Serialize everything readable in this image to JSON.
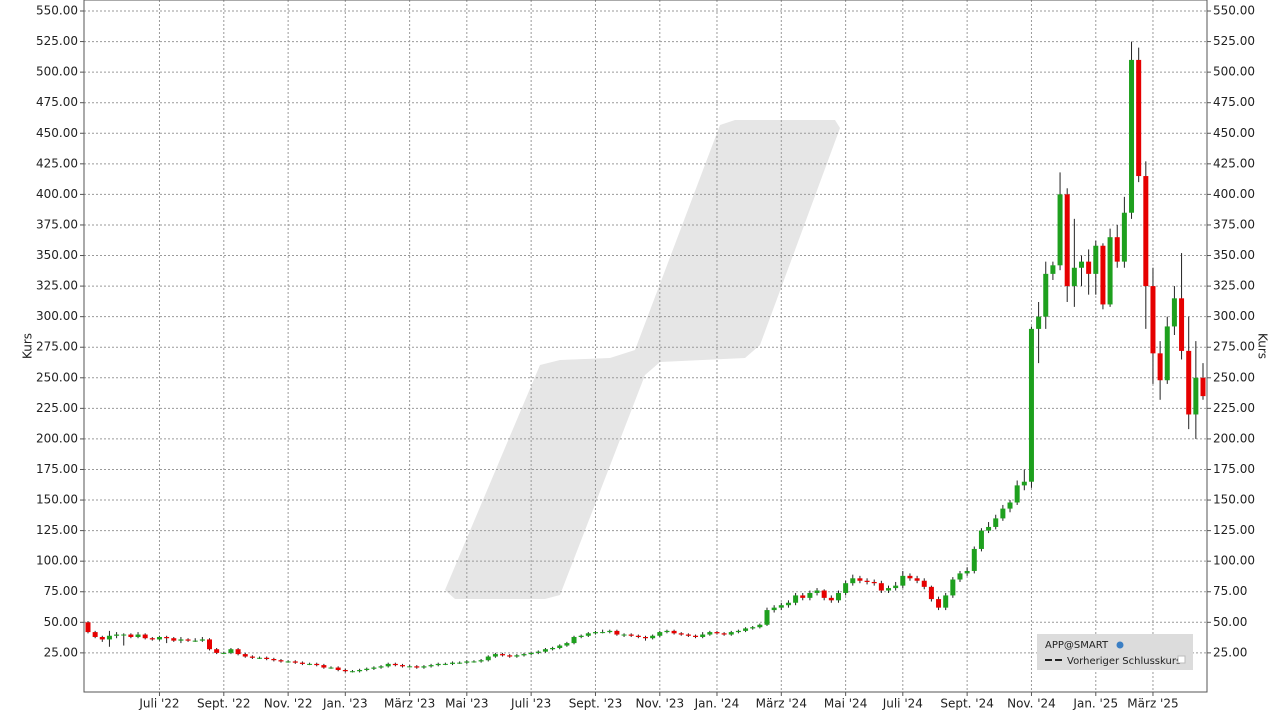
{
  "chart_data": {
    "type": "candlestick",
    "y_label": "Kurs",
    "ylim": [
      -7,
      559
    ],
    "yticks": [
      {
        "value": 25,
        "label": "25.00"
      },
      {
        "value": 50,
        "label": "50.00"
      },
      {
        "value": 75,
        "label": "75.00"
      },
      {
        "value": 100,
        "label": "100.00"
      },
      {
        "value": 125,
        "label": "125.00"
      },
      {
        "value": 150,
        "label": "150.00"
      },
      {
        "value": 175,
        "label": "175.00"
      },
      {
        "value": 200,
        "label": "200.00"
      },
      {
        "value": 225,
        "label": "225.00"
      },
      {
        "value": 250,
        "label": "250.00"
      },
      {
        "value": 275,
        "label": "275.00"
      },
      {
        "value": 300,
        "label": "300.00"
      },
      {
        "value": 325,
        "label": "325.00"
      },
      {
        "value": 350,
        "label": "350.00"
      },
      {
        "value": 375,
        "label": "375.00"
      },
      {
        "value": 400,
        "label": "400.00"
      },
      {
        "value": 425,
        "label": "425.00"
      },
      {
        "value": 450,
        "label": "450.00"
      },
      {
        "value": 475,
        "label": "475.00"
      },
      {
        "value": 500,
        "label": "500.00"
      },
      {
        "value": 525,
        "label": "525.00"
      },
      {
        "value": 550,
        "label": "550.00"
      }
    ],
    "grid": true,
    "up_color": "#1ea01e",
    "down_color": "#e60000",
    "legend": {
      "series_name": "APP@SMART",
      "previous_close": "Vorheriger Schlusskurs"
    },
    "categories": [
      null,
      null,
      null,
      null,
      null,
      null,
      null,
      null,
      null,
      null,
      "Juli '22",
      null,
      null,
      null,
      null,
      null,
      null,
      null,
      null,
      "Sept. '22",
      null,
      null,
      null,
      null,
      null,
      null,
      null,
      null,
      "Nov. '22",
      null,
      null,
      null,
      null,
      null,
      null,
      null,
      "Jan. '23",
      null,
      null,
      null,
      null,
      null,
      null,
      null,
      null,
      "März '23",
      null,
      null,
      null,
      null,
      null,
      null,
      null,
      "Mai '23",
      null,
      null,
      null,
      null,
      null,
      null,
      null,
      null,
      "Juli '23",
      null,
      null,
      null,
      null,
      null,
      null,
      null,
      null,
      "Sept. '23",
      null,
      null,
      null,
      null,
      null,
      null,
      null,
      null,
      "Nov. '23",
      null,
      null,
      null,
      null,
      null,
      null,
      null,
      "Jan. '24",
      null,
      null,
      null,
      null,
      null,
      null,
      null,
      null,
      "März '24",
      null,
      null,
      null,
      null,
      null,
      null,
      null,
      null,
      "Mai '24",
      null,
      null,
      null,
      null,
      null,
      null,
      null,
      "Juli '24",
      null,
      null,
      null,
      null,
      null,
      null,
      null,
      null,
      "Sept. '24",
      null,
      null,
      null,
      null,
      null,
      null,
      null,
      null,
      "Nov. '24",
      null,
      null,
      null,
      null,
      null,
      null,
      null,
      null,
      "Jan. '25",
      null,
      null,
      null,
      null,
      null,
      null,
      null,
      "März '25",
      null,
      null,
      null,
      null,
      null,
      null,
      null
    ],
    "open": [
      50,
      42,
      38,
      36,
      39,
      40,
      40,
      38,
      40,
      37,
      36,
      38,
      37,
      35,
      36,
      35,
      35,
      36,
      28,
      25,
      25,
      28,
      24,
      22,
      21,
      21,
      20,
      19,
      18,
      18,
      17,
      16,
      16,
      15,
      13,
      13,
      11,
      10,
      10,
      11,
      12,
      13,
      14,
      16,
      15,
      14,
      14,
      13,
      14,
      15,
      16,
      16,
      17,
      17,
      18,
      18,
      19,
      22,
      24,
      23,
      22,
      23,
      24,
      25,
      26,
      28,
      29,
      31,
      33,
      38,
      39,
      41,
      42,
      42,
      43,
      40,
      40,
      39,
      38,
      37,
      39,
      42,
      43,
      41,
      40,
      39,
      38,
      40,
      42,
      41,
      40,
      42,
      43,
      45,
      46,
      48,
      60,
      62,
      64,
      66,
      72,
      70,
      74,
      76,
      70,
      68,
      74,
      82,
      86,
      84,
      83,
      82,
      76,
      78,
      80,
      88,
      86,
      84,
      79,
      69,
      62,
      72,
      85,
      90,
      92,
      110,
      125,
      128,
      135,
      143,
      148,
      162,
      165,
      290,
      300,
      335,
      342,
      400,
      325,
      340,
      345,
      335,
      358,
      310,
      365,
      345,
      385,
      510,
      415,
      325,
      270,
      248,
      292,
      315,
      272,
      220,
      250
    ],
    "high": [
      51,
      43,
      39,
      43,
      42,
      41,
      41,
      42,
      41,
      38,
      39,
      39,
      38,
      38,
      37,
      37,
      38,
      37,
      29,
      26,
      29,
      29,
      25,
      23,
      22,
      22,
      21,
      20,
      19,
      19,
      18,
      17,
      17,
      16,
      14,
      14,
      12,
      11,
      12,
      13,
      14,
      15,
      17,
      17,
      16,
      15,
      15,
      15,
      16,
      17,
      17,
      18,
      18,
      19,
      19,
      20,
      23,
      25,
      25,
      24,
      24,
      25,
      26,
      27,
      29,
      30,
      32,
      34,
      39,
      40,
      42,
      43,
      44,
      44,
      44,
      41,
      41,
      40,
      39,
      40,
      43,
      44,
      44,
      42,
      41,
      40,
      42,
      43,
      43,
      42,
      43,
      44,
      46,
      47,
      49,
      62,
      64,
      66,
      68,
      74,
      74,
      76,
      78,
      77,
      72,
      76,
      84,
      89,
      88,
      86,
      85,
      84,
      80,
      83,
      92,
      90,
      88,
      86,
      80,
      71,
      74,
      87,
      92,
      95,
      112,
      127,
      132,
      138,
      146,
      150,
      166,
      175,
      292,
      312,
      345,
      345,
      418,
      405,
      380,
      350,
      355,
      362,
      360,
      372,
      375,
      398,
      525,
      520,
      427,
      340,
      280,
      300,
      325,
      352,
      300,
      280,
      262
    ],
    "low": [
      41,
      37,
      34,
      30,
      37,
      31,
      37,
      37,
      36,
      35,
      35,
      33,
      34,
      33,
      34,
      34,
      34,
      27,
      24,
      24,
      24,
      23,
      21,
      20,
      20,
      19,
      18,
      17,
      17,
      16,
      15,
      15,
      14,
      12,
      12,
      10,
      9,
      9,
      9,
      10,
      11,
      12,
      13,
      14,
      13,
      13,
      12,
      12,
      13,
      14,
      15,
      15,
      16,
      16,
      17,
      17,
      18,
      21,
      22,
      21,
      21,
      22,
      23,
      24,
      25,
      27,
      28,
      30,
      32,
      37,
      38,
      40,
      41,
      41,
      39,
      38,
      38,
      37,
      35,
      36,
      38,
      41,
      40,
      39,
      38,
      37,
      37,
      39,
      40,
      39,
      39,
      41,
      42,
      44,
      45,
      47,
      58,
      60,
      62,
      64,
      68,
      68,
      72,
      68,
      66,
      66,
      72,
      80,
      82,
      81,
      80,
      74,
      74,
      76,
      78,
      84,
      82,
      77,
      67,
      60,
      60,
      70,
      83,
      88,
      90,
      108,
      123,
      126,
      133,
      140,
      146,
      158,
      160,
      262,
      290,
      330,
      338,
      312,
      308,
      325,
      318,
      318,
      306,
      308,
      340,
      340,
      380,
      410,
      290,
      245,
      232,
      245,
      285,
      265,
      208,
      200,
      232
    ],
    "close": [
      42,
      38,
      36,
      39,
      40,
      40,
      38,
      40,
      37,
      36,
      38,
      37,
      35,
      36,
      35,
      35,
      36,
      28,
      25,
      25,
      28,
      24,
      22,
      21,
      21,
      20,
      19,
      18,
      18,
      17,
      16,
      16,
      15,
      13,
      13,
      11,
      10,
      10,
      11,
      12,
      13,
      14,
      16,
      15,
      14,
      14,
      13,
      14,
      15,
      16,
      16,
      17,
      17,
      18,
      18,
      19,
      22,
      24,
      23,
      22,
      23,
      24,
      25,
      26,
      28,
      29,
      31,
      33,
      38,
      39,
      41,
      42,
      42,
      43,
      40,
      40,
      39,
      38,
      37,
      39,
      42,
      43,
      41,
      40,
      39,
      38,
      40,
      42,
      41,
      40,
      42,
      43,
      45,
      46,
      48,
      60,
      62,
      64,
      66,
      72,
      70,
      74,
      76,
      70,
      68,
      74,
      82,
      86,
      84,
      83,
      82,
      76,
      78,
      80,
      88,
      86,
      84,
      79,
      69,
      62,
      72,
      85,
      90,
      92,
      110,
      125,
      128,
      135,
      143,
      148,
      162,
      165,
      290,
      300,
      335,
      342,
      400,
      325,
      340,
      345,
      335,
      358,
      310,
      365,
      345,
      385,
      510,
      415,
      325,
      270,
      248,
      292,
      315,
      272,
      220,
      250,
      235
    ]
  }
}
